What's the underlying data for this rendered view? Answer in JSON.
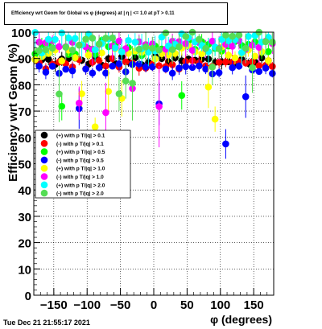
{
  "chart_data": {
    "type": "scatter",
    "title": "Efficiency wrt Geom for Global vs φ (degrees) at | η | <= 1.0 at pT > 0.11",
    "xlabel": "φ (degrees)",
    "ylabel": "Efficiency wrt Geom (%)",
    "xlim": [
      -180,
      180
    ],
    "ylim": [
      0,
      100
    ],
    "x_ticks": [
      -150,
      -100,
      -50,
      0,
      50,
      100,
      150
    ],
    "y_ticks": [
      0,
      10,
      20,
      30,
      40,
      50,
      60,
      70,
      80,
      90,
      100
    ],
    "grid": true,
    "legend_position": "left-middle",
    "series": [
      {
        "name": "(+) with p T/|q| > 0.1",
        "color": "#000000",
        "marker": "circle",
        "mean": 89,
        "spread": 2
      },
      {
        "name": "(-) with p T/|q| > 0.1",
        "color": "#ff0000",
        "marker": "circle",
        "mean": 88,
        "spread": 2
      },
      {
        "name": "(+) with p T/|q| > 0.5",
        "color": "#00ff00",
        "marker": "circle",
        "mean": 94,
        "spread": 3
      },
      {
        "name": "(-) with p T/|q| > 0.5",
        "color": "#0000ff",
        "marker": "circle",
        "mean": 86,
        "spread": 2
      },
      {
        "name": "(+) with p T/|q| > 1.0",
        "color": "#ffff00",
        "marker": "circle",
        "mean": 92,
        "spread": 3
      },
      {
        "name": "(-) with p T/|q| > 1.0",
        "color": "#ff00ff",
        "marker": "circle",
        "mean": 95,
        "spread": 2
      },
      {
        "name": "(+) with p T/|q| > 2.0",
        "color": "#00ffff",
        "marker": "circle",
        "mean": 96,
        "spread": 4
      },
      {
        "name": "(-) with p T/|q| > 2.0",
        "color": "#55dd55",
        "marker": "circle",
        "mean": 97,
        "spread": 4
      }
    ]
  },
  "footer": {
    "timestamp": "Tue Dec 21 21:55:17 2021"
  }
}
